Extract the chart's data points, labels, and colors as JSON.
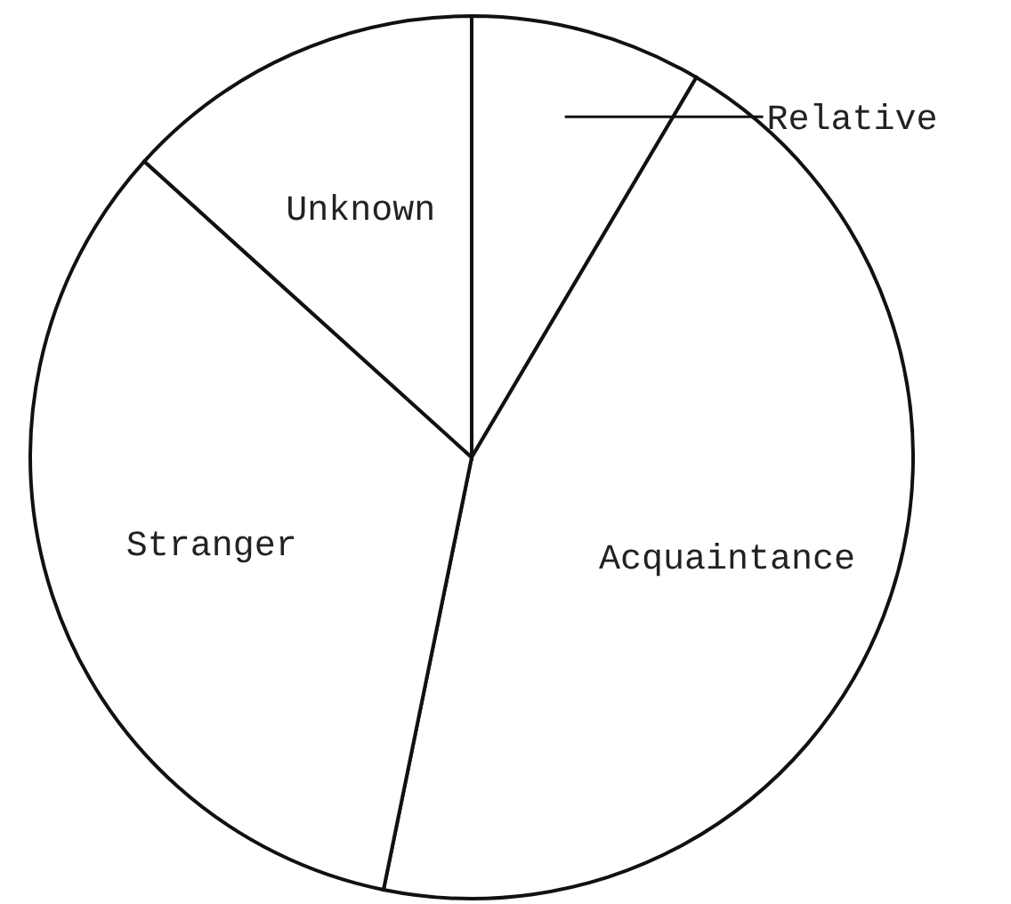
{
  "chart_data": {
    "type": "pie",
    "categories": [
      "Relative",
      "Acquaintance",
      "Stranger",
      "Unknown"
    ],
    "values": [
      8.5,
      44.7,
      33.5,
      13.3
    ],
    "colors": [
      "#ffffff",
      "#ffffff",
      "#ffffff",
      "#ffffff"
    ]
  }
}
